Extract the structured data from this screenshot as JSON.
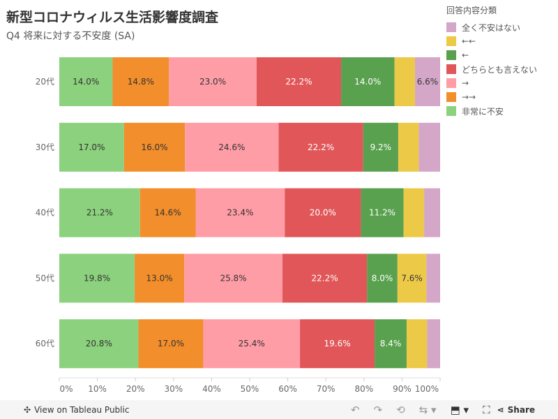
{
  "chart_data": {
    "type": "bar",
    "orientation": "horizontal-stacked-100",
    "title": "新型コロナウィルス生活影響度調査",
    "subtitle": "Q4 将来に対する不安度 (SA)",
    "legend_title": "回答内容分類",
    "legend_placement": "top-right",
    "categories": [
      "20代",
      "30代",
      "40代",
      "50代",
      "60代"
    ],
    "series": [
      {
        "name": "非常に不安",
        "color": "#8cd17d",
        "label_color": "#333",
        "values": [
          14.0,
          17.0,
          21.2,
          19.8,
          20.8
        ]
      },
      {
        "name": "→→",
        "color": "#f28e2b",
        "label_color": "#333",
        "values": [
          14.8,
          16.0,
          14.6,
          13.0,
          17.0
        ]
      },
      {
        "name": "→",
        "color": "#ff9da7",
        "label_color": "#333",
        "values": [
          23.0,
          24.6,
          23.4,
          25.8,
          25.4
        ]
      },
      {
        "name": "どちらとも言えない",
        "color": "#e15759",
        "label_color": "#fff",
        "values": [
          22.2,
          22.2,
          20.0,
          22.2,
          19.6
        ]
      },
      {
        "name": "←",
        "color": "#59a14f",
        "label_color": "#fff",
        "values": [
          14.0,
          9.2,
          11.2,
          8.0,
          8.4
        ]
      },
      {
        "name": "←←",
        "color": "#edc948",
        "label_color": "#333",
        "values": [
          5.4,
          5.4,
          5.4,
          7.6,
          5.4
        ]
      },
      {
        "name": "全く不安はない",
        "color": "#d4a6c8",
        "label_color": "#333",
        "values": [
          6.6,
          5.6,
          4.2,
          3.6,
          3.4
        ]
      }
    ],
    "legend_order": [
      6,
      5,
      4,
      3,
      2,
      1,
      0
    ],
    "xlim": [
      0,
      100
    ],
    "xticks": [
      "0%",
      "10%",
      "20%",
      "30%",
      "40%",
      "50%",
      "60%",
      "70%",
      "80%",
      "90%",
      "100%"
    ],
    "label_min": 6
  },
  "footer": {
    "view": "View on Tableau Public",
    "share": "Share"
  }
}
